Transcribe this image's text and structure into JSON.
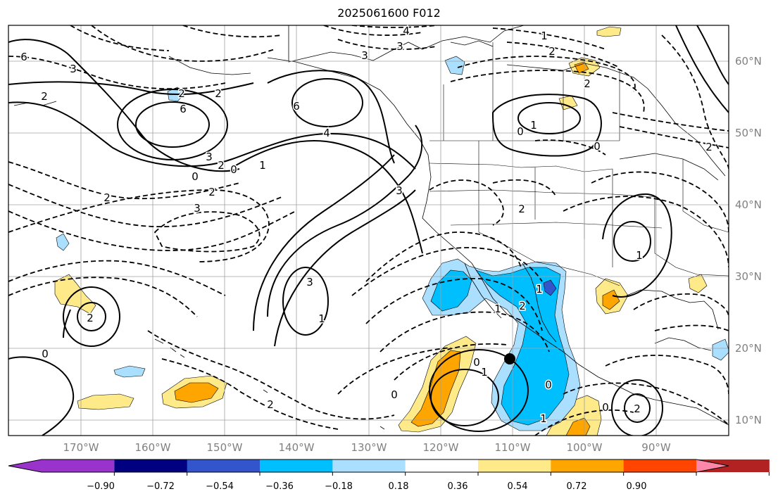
{
  "title": "2025061600 F012",
  "lat_ticks": [
    "60°N",
    "50°N",
    "40°N",
    "30°N",
    "20°N",
    "10°N"
  ],
  "lon_ticks": [
    "170°W",
    "160°W",
    "150°W",
    "140°W",
    "130°W",
    "120°W",
    "110°W",
    "100°W",
    "90°W"
  ],
  "colorbar": {
    "labels": [
      "−0.90",
      "−0.72",
      "−0.54",
      "−0.36",
      "−0.18",
      "0.18",
      "0.36",
      "0.54",
      "0.72",
      "0.90"
    ],
    "colors": [
      "#9933cc",
      "#000080",
      "#3355cc",
      "#00bfff",
      "#aadfff",
      "#ffffff",
      "#ffea8a",
      "#ffa500",
      "#ff4500",
      "#b22222",
      "#ff88aa"
    ]
  },
  "contour_labels": [
    "4",
    "3",
    "3",
    "2",
    "1",
    "2",
    "2",
    "6",
    "3",
    "2",
    "2",
    "6",
    "6",
    "4",
    "3",
    "2",
    "0",
    "1",
    "2",
    "3",
    "2",
    "3",
    "0",
    "1",
    "2",
    "0",
    "0",
    "2",
    "3",
    "1",
    "2",
    "0",
    "1",
    "1",
    "2",
    "1",
    "0",
    "1",
    "0",
    "2",
    "0",
    "0",
    "2",
    "1"
  ],
  "colors": {
    "positive_contour": "#000000",
    "negative_contour": "#000000",
    "coast": "#000000",
    "grid": "#a0a0a0",
    "marker": "#000000"
  }
}
